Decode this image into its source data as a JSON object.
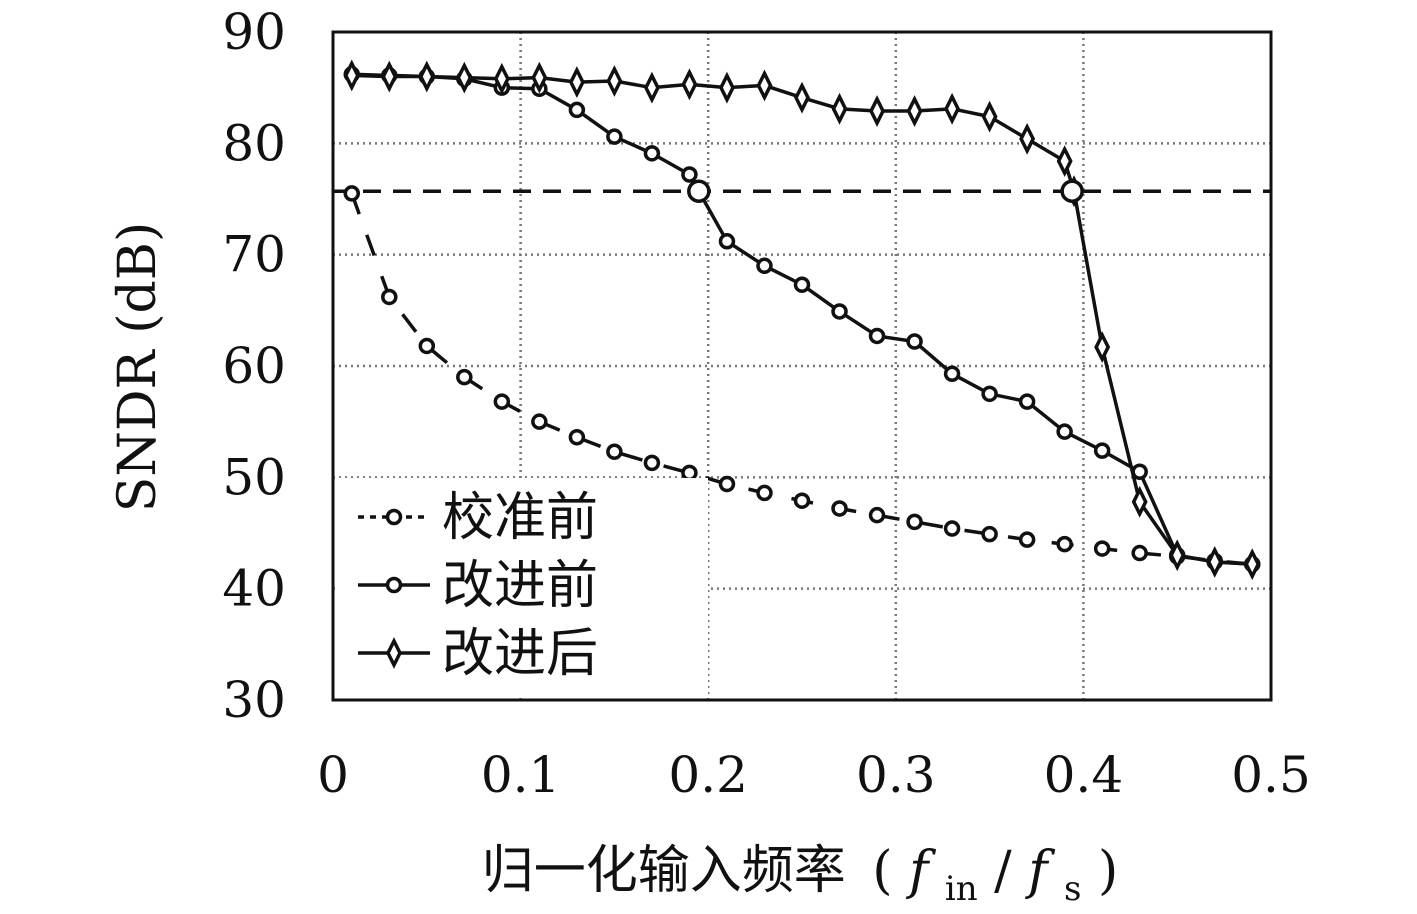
{
  "chart_data": {
    "type": "line",
    "xlabel": "归一化输入频率",
    "xlabel_math": {
      "open": "(",
      "f": "f",
      "sub_in": "in",
      "slash": "/",
      "f2": "f",
      "sub_s": "s",
      "close": ")"
    },
    "ylabel": "SNDR (dB)",
    "xlim": [
      0,
      0.5
    ],
    "ylim": [
      30,
      90
    ],
    "xticks": [
      "0",
      "0.1",
      "0.2",
      "0.3",
      "0.4",
      "0.5"
    ],
    "yticks": [
      "30",
      "40",
      "50",
      "60",
      "70",
      "80",
      "90"
    ],
    "grid": true,
    "legend_position": "bottom-left",
    "reference_line": {
      "y": 75.7,
      "style": "dashed"
    },
    "series": [
      {
        "name": "校准前",
        "marker": "circle",
        "line_style": "dashed",
        "x": [
          0.01,
          0.03,
          0.05,
          0.07,
          0.09,
          0.11,
          0.13,
          0.15,
          0.17,
          0.19,
          0.21,
          0.23,
          0.25,
          0.27,
          0.29,
          0.31,
          0.33,
          0.35,
          0.37,
          0.39,
          0.41,
          0.43,
          0.45,
          0.47,
          0.49
        ],
        "y": [
          75.5,
          66.2,
          61.8,
          59.0,
          56.8,
          55.0,
          53.6,
          52.3,
          51.3,
          50.4,
          49.4,
          48.6,
          47.9,
          47.2,
          46.6,
          46.0,
          45.4,
          44.9,
          44.4,
          44.0,
          43.6,
          43.2,
          42.9,
          42.5,
          42.2
        ]
      },
      {
        "name": "改进前",
        "marker": "circle",
        "line_style": "solid",
        "x": [
          0.01,
          0.03,
          0.05,
          0.07,
          0.09,
          0.11,
          0.13,
          0.15,
          0.17,
          0.19,
          0.195,
          0.21,
          0.23,
          0.25,
          0.27,
          0.29,
          0.31,
          0.33,
          0.35,
          0.37,
          0.39,
          0.41,
          0.43,
          0.45,
          0.47,
          0.49
        ],
        "y": [
          86.2,
          86.1,
          86.0,
          85.8,
          85.0,
          84.9,
          83.0,
          80.6,
          79.1,
          77.2,
          75.7,
          71.2,
          69.0,
          67.3,
          64.9,
          62.7,
          62.2,
          59.3,
          57.5,
          56.8,
          54.1,
          52.4,
          50.5,
          43.0,
          42.4,
          42.2
        ]
      },
      {
        "name": "改进后",
        "marker": "diamond",
        "line_style": "solid",
        "x": [
          0.01,
          0.03,
          0.05,
          0.07,
          0.09,
          0.11,
          0.13,
          0.15,
          0.17,
          0.19,
          0.21,
          0.23,
          0.25,
          0.27,
          0.29,
          0.31,
          0.33,
          0.35,
          0.37,
          0.39,
          0.395,
          0.41,
          0.43,
          0.45,
          0.47,
          0.49
        ],
        "y": [
          86.1,
          86.0,
          86.0,
          85.9,
          85.8,
          85.9,
          85.5,
          85.6,
          85.0,
          85.3,
          85.0,
          85.2,
          84.1,
          83.1,
          82.9,
          82.9,
          83.1,
          82.4,
          80.4,
          78.4,
          75.7,
          61.7,
          47.8,
          43.0,
          42.4,
          42.2
        ]
      }
    ],
    "threshold_points": [
      {
        "x": 0.195,
        "y": 75.7
      },
      {
        "x": 0.394,
        "y": 75.7
      }
    ]
  }
}
